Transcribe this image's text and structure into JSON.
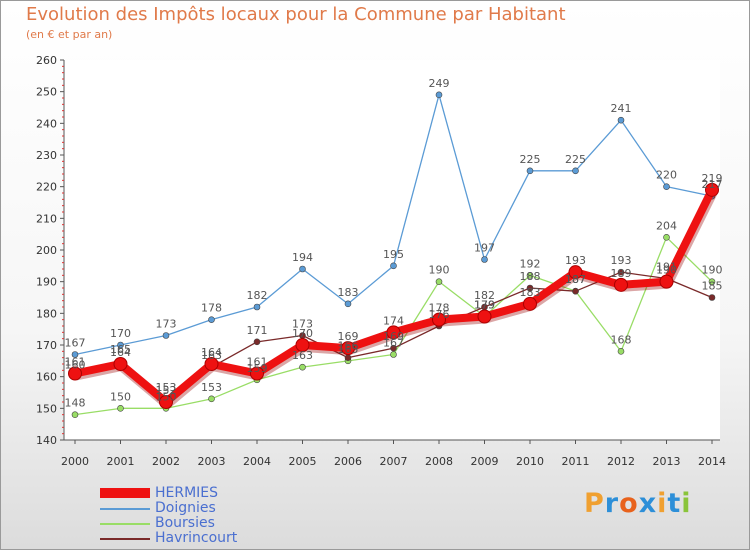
{
  "title": "Evolution des Impôts locaux pour la Commune par Habitant",
  "subtitle": "(en € et par an)",
  "logo": {
    "text": "Proxiti",
    "letters": [
      "P",
      "r",
      "o",
      "x",
      "i",
      "t",
      "i"
    ],
    "colors": [
      "#f0a030",
      "#2d8fd8",
      "#e8621c",
      "#2d8fd8",
      "#f0a030",
      "#2d8fd8",
      "#8ac43a"
    ]
  },
  "chart_data": {
    "type": "line",
    "title": "Evolution des Impôts locaux pour la Commune par Habitant",
    "subtitle": "(en € et par an)",
    "xlabel": "",
    "ylabel": "",
    "categories": [
      "2000",
      "2001",
      "2002",
      "2003",
      "2004",
      "2005",
      "2006",
      "2007",
      "2008",
      "2009",
      "2010",
      "2011",
      "2012",
      "2013",
      "2014"
    ],
    "ylim": [
      140,
      260
    ],
    "yticks": [
      "140",
      "150",
      "160",
      "170",
      "180",
      "190",
      "200",
      "210",
      "220",
      "230",
      "240",
      "250",
      "260"
    ],
    "grid": false,
    "legend_position": "bottom-left",
    "series": [
      {
        "name": "HERMIES",
        "color": "#ee1111",
        "values": [
          161,
          164,
          152,
          164,
          161,
          170,
          169,
          174,
          178,
          179,
          183,
          193,
          189,
          190,
          219
        ]
      },
      {
        "name": "Doignies",
        "color": "#5b9bd5",
        "values": [
          167,
          170,
          173,
          178,
          182,
          194,
          183,
          195,
          249,
          197,
          225,
          225,
          241,
          220,
          217
        ]
      },
      {
        "name": "Boursies",
        "color": "#99dd66",
        "values": [
          148,
          150,
          150,
          153,
          159,
          163,
          165,
          167,
          190,
          179,
          192,
          187,
          168,
          204,
          190
        ]
      },
      {
        "name": "Havrincourt",
        "color": "#7a2a2a",
        "values": [
          160,
          165,
          153,
          163,
          171,
          173,
          166,
          169,
          176,
          182,
          188,
          187,
          193,
          191,
          185
        ]
      }
    ]
  }
}
